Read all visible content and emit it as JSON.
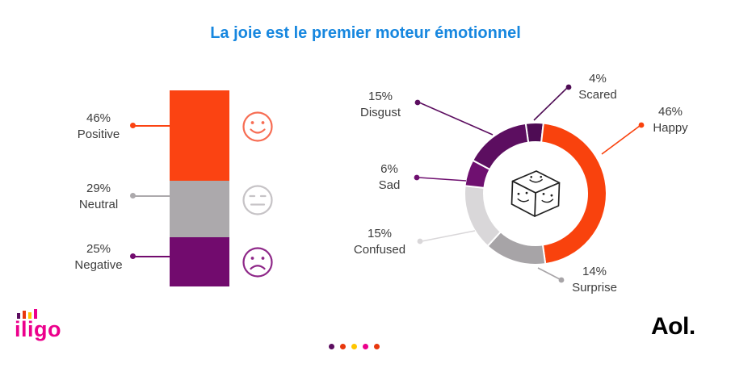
{
  "title": "La joie est le premier moteur émotionnel",
  "colors": {
    "title": "#1787DF",
    "text": "#3D3D3D",
    "faces": {
      "happy": "#F76C52",
      "neutral": "#C6C3C6",
      "sad": "#8E2788"
    },
    "iligo_pink": "#EC008C",
    "aol_black": "#000000"
  },
  "chart_data": [
    {
      "type": "bar",
      "subtype": "stacked-vertical",
      "title": "",
      "categories": [
        "Positive",
        "Neutral",
        "Negative"
      ],
      "values": [
        46,
        29,
        25
      ],
      "labels": [
        "46%",
        "29%",
        "25%"
      ],
      "colors": [
        "#FB4312",
        "#ACA9AC",
        "#720B6E"
      ],
      "ylim": [
        0,
        100
      ]
    },
    {
      "type": "pie",
      "subtype": "donut",
      "title": "",
      "categories": [
        "Scared",
        "Happy",
        "Surprise",
        "Confused",
        "Sad",
        "Disgust"
      ],
      "values": [
        4,
        46,
        14,
        15,
        6,
        15
      ],
      "labels": [
        "4%",
        "46%",
        "14%",
        "15%",
        "6%",
        "15%"
      ],
      "colors": [
        "#4E0C54",
        "#F9420D",
        "#A7A4A7",
        "#D9D7D9",
        "#6F1070",
        "#5C0E60"
      ],
      "start_angle_deg": -8,
      "center_icon": "emotion-cube",
      "legend": "callout-labels"
    }
  ],
  "footer": {
    "brand_left": "iligo",
    "brand_right": "Aol.",
    "logo_bar_colors": [
      "#5C0E60",
      "#E8380D",
      "#FFC600",
      "#EC008C"
    ],
    "dots": [
      "#5C0E60",
      "#E8380D",
      "#FFC600",
      "#EC008C",
      "#E8380D"
    ]
  }
}
